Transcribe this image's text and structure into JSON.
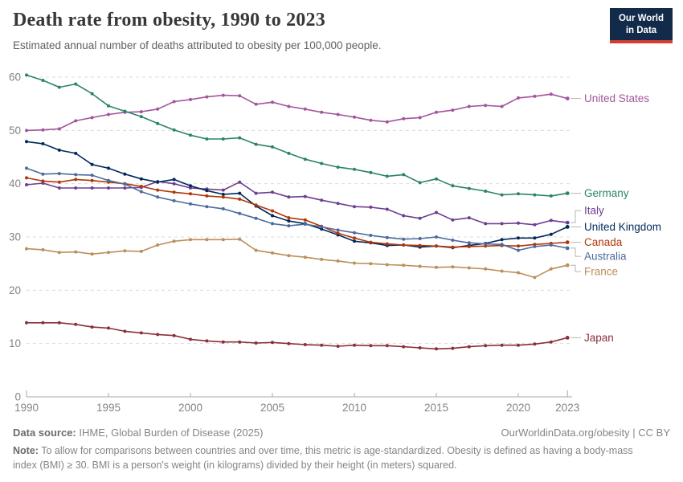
{
  "header": {
    "title": "Death rate from obesity, 1990 to 2023",
    "subtitle": "Estimated annual number of deaths attributed to obesity per 100,000 people.",
    "logo": {
      "line1": "Our World",
      "line2": "in Data"
    }
  },
  "colors": {
    "logo_background": "#132B4B",
    "logo_accent": "#D73C32",
    "title_text": "#383838",
    "muted_text": "#858585",
    "axis_text": "#848484",
    "grid": "#DBDBDB",
    "axis_line": "#A8A8A8",
    "connector": "#B5B5B5",
    "background": "#FFFFFF"
  },
  "chart_data": {
    "type": "line",
    "title": "Death rate from obesity, 1990 to 2023",
    "xlabel": "",
    "ylabel": "",
    "grid": "horizontal-dashed",
    "legend_position": "right-end-labels",
    "ylim": [
      0,
      62
    ],
    "y_ticks": [
      0,
      10,
      20,
      30,
      40,
      50,
      60
    ],
    "x_ticks": [
      1990,
      1995,
      2000,
      2005,
      2010,
      2015,
      2020,
      2023
    ],
    "x": [
      1990,
      1991,
      1992,
      1993,
      1994,
      1995,
      1996,
      1997,
      1998,
      1999,
      2000,
      2001,
      2002,
      2003,
      2004,
      2005,
      2006,
      2007,
      2008,
      2009,
      2010,
      2011,
      2012,
      2013,
      2014,
      2015,
      2016,
      2017,
      2018,
      2019,
      2020,
      2021,
      2022,
      2023
    ],
    "series": [
      {
        "name": "united-states",
        "label": "United States",
        "color": "#A2559C",
        "values": [
          50.0,
          50.1,
          50.3,
          51.8,
          52.4,
          53.0,
          53.4,
          53.5,
          54.0,
          55.4,
          55.8,
          56.3,
          56.6,
          56.5,
          54.9,
          55.3,
          54.5,
          54.0,
          53.4,
          53.0,
          52.5,
          51.9,
          51.6,
          52.2,
          52.4,
          53.4,
          53.8,
          54.5,
          54.7,
          54.5,
          56.1,
          56.4,
          56.8,
          56.0
        ]
      },
      {
        "name": "germany",
        "label": "Germany",
        "color": "#2C8465",
        "values": [
          60.4,
          59.4,
          58.1,
          58.7,
          56.9,
          54.6,
          53.6,
          52.6,
          51.3,
          50.1,
          49.1,
          48.4,
          48.4,
          48.6,
          47.4,
          46.9,
          45.7,
          44.6,
          43.8,
          43.1,
          42.7,
          42.1,
          41.4,
          41.7,
          40.2,
          40.9,
          39.6,
          39.1,
          38.6,
          37.9,
          38.1,
          37.9,
          37.7,
          38.2
        ]
      },
      {
        "name": "italy",
        "label": "Italy",
        "color": "#6D3E91",
        "values": [
          39.8,
          40.1,
          39.2,
          39.2,
          39.2,
          39.2,
          39.2,
          39.3,
          40.4,
          40.0,
          39.2,
          39.0,
          38.8,
          40.3,
          38.2,
          38.4,
          37.5,
          37.6,
          36.9,
          36.3,
          35.7,
          35.6,
          35.2,
          34.0,
          33.5,
          34.6,
          33.2,
          33.6,
          32.5,
          32.5,
          32.6,
          32.3,
          33.1,
          32.7
        ]
      },
      {
        "name": "united-kingdom",
        "label": "United Kingdom",
        "color": "#00295B",
        "values": [
          47.9,
          47.5,
          46.3,
          45.7,
          43.6,
          42.9,
          41.8,
          40.9,
          40.3,
          40.8,
          39.6,
          38.7,
          38.0,
          38.2,
          35.8,
          34.0,
          33.0,
          32.5,
          31.5,
          30.4,
          29.2,
          28.9,
          28.4,
          28.5,
          28.1,
          28.3,
          28.0,
          28.4,
          28.8,
          29.5,
          29.8,
          29.8,
          30.5,
          31.9
        ]
      },
      {
        "name": "canada",
        "label": "Canada",
        "color": "#B13507",
        "values": [
          41.1,
          40.5,
          40.3,
          40.8,
          40.6,
          40.3,
          40.0,
          39.5,
          38.8,
          38.4,
          38.1,
          37.7,
          37.5,
          37.1,
          36.0,
          34.9,
          33.6,
          33.2,
          32.0,
          30.7,
          29.8,
          29.0,
          28.7,
          28.5,
          28.4,
          28.3,
          28.1,
          28.2,
          28.3,
          28.4,
          28.3,
          28.6,
          28.8,
          29.0
        ]
      },
      {
        "name": "australia",
        "label": "Australia",
        "color": "#4C6A9C",
        "values": [
          42.9,
          41.8,
          41.9,
          41.7,
          41.6,
          40.6,
          39.9,
          38.5,
          37.5,
          36.8,
          36.2,
          35.7,
          35.3,
          34.4,
          33.5,
          32.5,
          32.1,
          32.4,
          31.9,
          31.3,
          30.8,
          30.3,
          29.9,
          29.6,
          29.7,
          30.0,
          29.4,
          28.9,
          28.7,
          28.6,
          27.5,
          28.2,
          28.5,
          27.9
        ]
      },
      {
        "name": "france",
        "label": "France",
        "color": "#BC8E5A",
        "values": [
          27.8,
          27.6,
          27.1,
          27.2,
          26.8,
          27.1,
          27.4,
          27.3,
          28.5,
          29.2,
          29.5,
          29.5,
          29.5,
          29.6,
          27.5,
          27.0,
          26.5,
          26.2,
          25.8,
          25.5,
          25.1,
          25.0,
          24.8,
          24.7,
          24.5,
          24.3,
          24.4,
          24.2,
          24.0,
          23.6,
          23.3,
          22.4,
          24.0,
          24.7
        ]
      },
      {
        "name": "japan",
        "label": "Japan",
        "color": "#883039",
        "values": [
          13.9,
          13.9,
          13.9,
          13.6,
          13.1,
          12.9,
          12.3,
          12.0,
          11.7,
          11.5,
          10.8,
          10.5,
          10.3,
          10.3,
          10.1,
          10.2,
          10.0,
          9.8,
          9.7,
          9.5,
          9.7,
          9.6,
          9.6,
          9.4,
          9.2,
          9.0,
          9.1,
          9.4,
          9.6,
          9.7,
          9.7,
          9.9,
          10.3,
          11.1
        ]
      }
    ]
  },
  "footer": {
    "source_label": "Data source:",
    "source_value": "IHME, Global Burden of Disease (2025)",
    "license": "OurWorldinData.org/obesity | CC BY",
    "note_label": "Note:",
    "note_value": "To allow for comparisons between countries and over time, this metric is age-standardized. Obesity is defined as having a body-mass index (BMI) ≥ 30. BMI is a person's weight (in kilograms) divided by their height (in meters) squared."
  }
}
